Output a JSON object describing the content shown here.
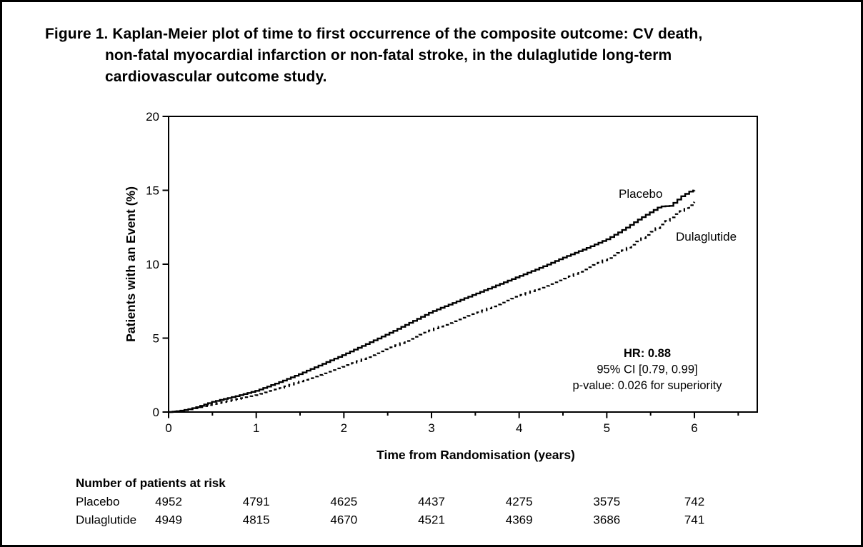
{
  "title": {
    "label": "Figure 1.",
    "lines": [
      "Kaplan-Meier plot of time to first occurrence of the composite outcome: CV death,",
      "non-fatal myocardial infarction or non-fatal stroke, in the dulaglutide long-term",
      "cardiovascular outcome study."
    ]
  },
  "chart_data": {
    "type": "line",
    "subtype": "kaplan-meier-step",
    "title": "Figure 1. Kaplan-Meier plot of time to first occurrence of the composite outcome: CV death, non-fatal myocardial infarction or non-fatal stroke, in the dulaglutide long-term cardiovascular outcome study.",
    "xlabel": "Time from Randomisation (years)",
    "ylabel": "Patients with an Event (%)",
    "xlim": [
      0,
      6.72
    ],
    "ylim": [
      0,
      20
    ],
    "x_ticks": [
      0,
      1,
      2,
      3,
      4,
      5,
      6
    ],
    "x_minor_ticks": [
      0.5,
      1.5,
      2.5,
      3.5,
      4.5,
      5.5,
      6.5
    ],
    "y_ticks": [
      0,
      5,
      10,
      15,
      20
    ],
    "grid": false,
    "line_color": "#000000",
    "series": [
      {
        "name": "Placebo",
        "line_style": "solid",
        "points": [
          [
            0,
            0
          ],
          [
            0.15,
            0.1
          ],
          [
            0.3,
            0.3
          ],
          [
            0.5,
            0.7
          ],
          [
            0.75,
            1.05
          ],
          [
            1,
            1.45
          ],
          [
            1.25,
            2.0
          ],
          [
            1.5,
            2.6
          ],
          [
            1.75,
            3.25
          ],
          [
            2,
            3.9
          ],
          [
            2.25,
            4.6
          ],
          [
            2.5,
            5.3
          ],
          [
            2.75,
            6.05
          ],
          [
            3,
            6.8
          ],
          [
            3.25,
            7.4
          ],
          [
            3.5,
            8.0
          ],
          [
            3.75,
            8.6
          ],
          [
            4,
            9.2
          ],
          [
            4.25,
            9.8
          ],
          [
            4.5,
            10.45
          ],
          [
            4.75,
            11.05
          ],
          [
            5,
            11.7
          ],
          [
            5.2,
            12.4
          ],
          [
            5.35,
            13.0
          ],
          [
            5.5,
            13.55
          ],
          [
            5.6,
            13.9
          ],
          [
            5.72,
            13.95
          ],
          [
            5.85,
            14.6
          ],
          [
            5.95,
            14.95
          ],
          [
            6,
            15.0
          ]
        ]
      },
      {
        "name": "Dulaglutide",
        "line_style": "dashed",
        "points": [
          [
            0,
            0
          ],
          [
            0.2,
            0.15
          ],
          [
            0.5,
            0.55
          ],
          [
            0.75,
            0.85
          ],
          [
            1,
            1.15
          ],
          [
            1.25,
            1.6
          ],
          [
            1.5,
            2.1
          ],
          [
            1.75,
            2.6
          ],
          [
            2,
            3.1
          ],
          [
            2.25,
            3.7
          ],
          [
            2.5,
            4.3
          ],
          [
            2.75,
            4.95
          ],
          [
            3,
            5.6
          ],
          [
            3.25,
            6.15
          ],
          [
            3.5,
            6.7
          ],
          [
            3.75,
            7.3
          ],
          [
            4,
            7.9
          ],
          [
            4.25,
            8.45
          ],
          [
            4.5,
            9.0
          ],
          [
            4.75,
            9.7
          ],
          [
            5,
            10.4
          ],
          [
            5.25,
            11.2
          ],
          [
            5.5,
            12.2
          ],
          [
            5.75,
            13.3
          ],
          [
            5.9,
            13.85
          ],
          [
            6,
            14.2
          ]
        ]
      }
    ],
    "annotation": {
      "lines": [
        "HR: 0.88",
        "95% CI [0.79, 0.99]",
        "p-value: 0.026 for superiority"
      ],
      "bold_line_index": 0
    },
    "at_risk_table": {
      "title": "Number of patients at risk",
      "time_points": [
        0,
        1,
        2,
        3,
        4,
        5,
        6
      ],
      "rows": [
        {
          "label": "Placebo",
          "values": [
            4952,
            4791,
            4625,
            4437,
            4275,
            3575,
            742
          ]
        },
        {
          "label": "Dulaglutide",
          "values": [
            4949,
            4815,
            4670,
            4521,
            4369,
            3686,
            741
          ]
        }
      ]
    }
  }
}
